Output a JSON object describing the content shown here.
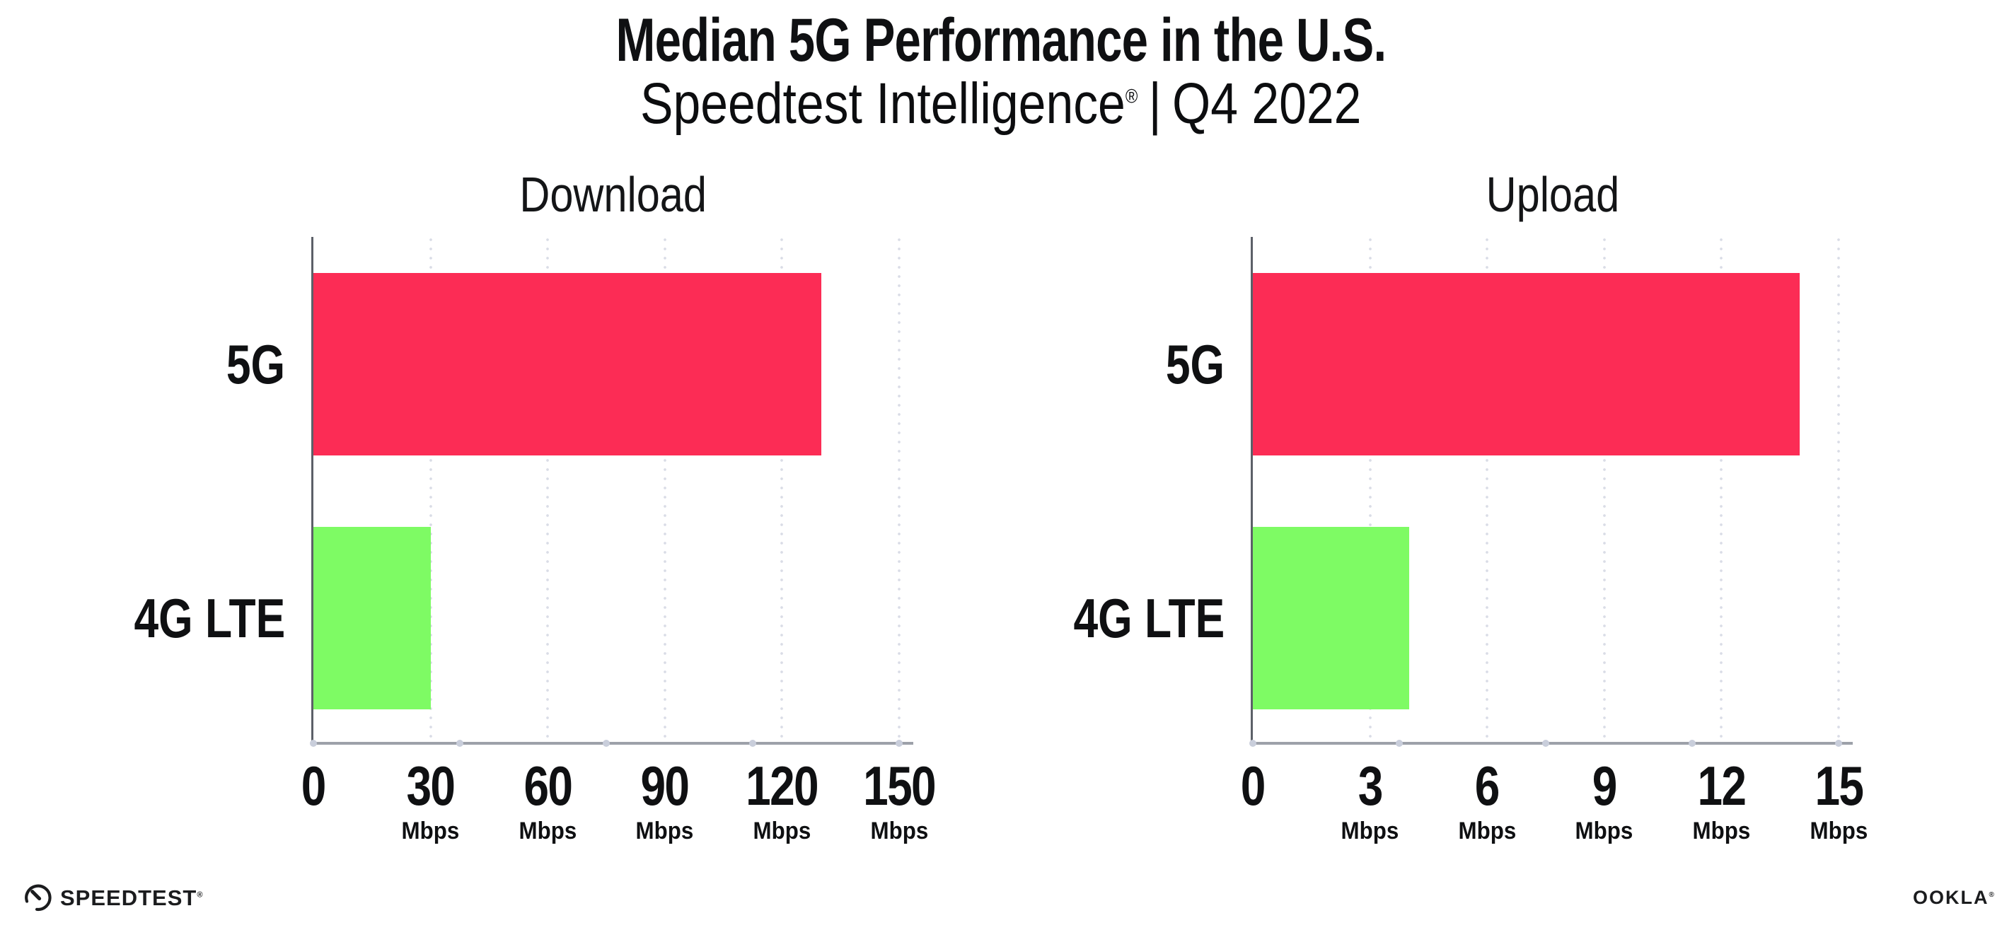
{
  "header": {
    "title": "Median 5G Performance in the U.S.",
    "subtitle_brand": "Speedtest Intelligence",
    "subtitle_trademark": "®",
    "subtitle_separator": "|",
    "subtitle_period": "Q4 2022"
  },
  "chart_data": [
    {
      "type": "bar",
      "orientation": "horizontal",
      "title": "Download",
      "categories": [
        "5G",
        "4G LTE"
      ],
      "values": [
        130,
        30
      ],
      "unit": "Mbps",
      "xlim": [
        0,
        150
      ],
      "xticks": [
        0,
        30,
        60,
        90,
        120,
        150
      ],
      "bar_colors": [
        "#FC2C55",
        "#7EFB64"
      ],
      "grid": "dotted-vertical-at-major-ticks",
      "legend": "none"
    },
    {
      "type": "bar",
      "orientation": "horizontal",
      "title": "Upload",
      "categories": [
        "5G",
        "4G LTE"
      ],
      "values": [
        14,
        4
      ],
      "unit": "Mbps",
      "xlim": [
        0,
        15
      ],
      "xticks": [
        0,
        3,
        6,
        9,
        12,
        15
      ],
      "bar_colors": [
        "#FC2C55",
        "#7EFB64"
      ],
      "grid": "dotted-vertical-at-major-ticks",
      "legend": "none"
    }
  ],
  "footer": {
    "speedtest_logo": "SPEEDTEST",
    "speedtest_trademark": "®",
    "ookla_logo": "OOKLA",
    "ookla_trademark": "®"
  },
  "colors": {
    "bar_5g": "#FC2C55",
    "bar_4g_lte": "#7EFB64",
    "grid_dots": "#D9DCE6",
    "axis_x": "#9DA1A9",
    "axis_y": "#5C6068",
    "axis_tick_dots": "#C9CEDB",
    "text": "#0F1012",
    "background": "#FFFFFF"
  }
}
